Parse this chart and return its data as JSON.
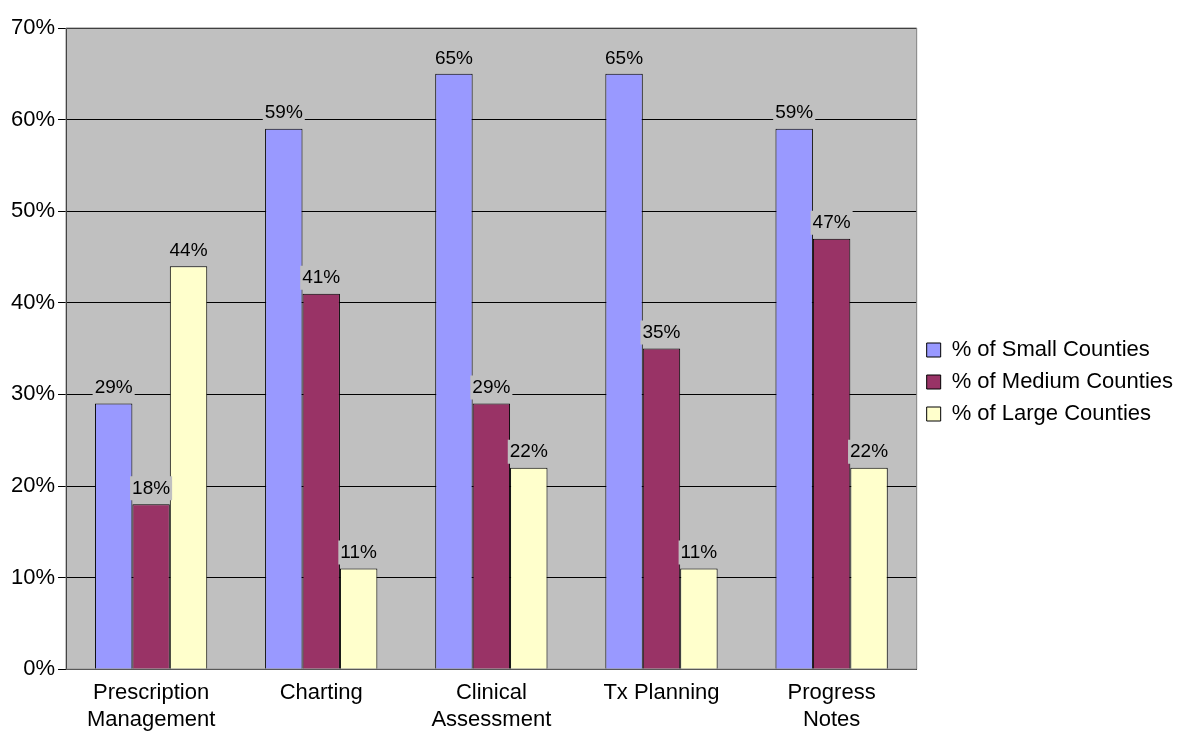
{
  "chart_data": {
    "type": "bar",
    "categories": [
      "Prescription Management",
      "Charting",
      "Clinical Assessment",
      "Tx Planning",
      "Progress Notes"
    ],
    "series": [
      {
        "name": "% of Small Counties",
        "color": "#9999ff",
        "values": [
          29,
          59,
          65,
          65,
          59
        ],
        "value_labels": [
          "29%",
          "59%",
          "65%",
          "65%",
          "59%"
        ]
      },
      {
        "name": "% of Medium Counties",
        "color": "#993366",
        "values": [
          18,
          41,
          29,
          35,
          47
        ],
        "value_labels": [
          "18%",
          "41%",
          "29%",
          "35%",
          "47%"
        ]
      },
      {
        "name": "% of Large Counties",
        "color": "#ffffcc",
        "values": [
          44,
          11,
          22,
          11,
          22
        ],
        "value_labels": [
          "44%",
          "11%",
          "22%",
          "11%",
          "22%"
        ]
      }
    ],
    "ylim": [
      0,
      70
    ],
    "yticks": [
      {
        "value": 0,
        "label": "0%"
      },
      {
        "value": 10,
        "label": "10%"
      },
      {
        "value": 20,
        "label": "20%"
      },
      {
        "value": 30,
        "label": "30%"
      },
      {
        "value": 40,
        "label": "40%"
      },
      {
        "value": 50,
        "label": "50%"
      },
      {
        "value": 60,
        "label": "60%"
      },
      {
        "value": 70,
        "label": "70%"
      }
    ],
    "grid": "y",
    "legend": "right"
  }
}
